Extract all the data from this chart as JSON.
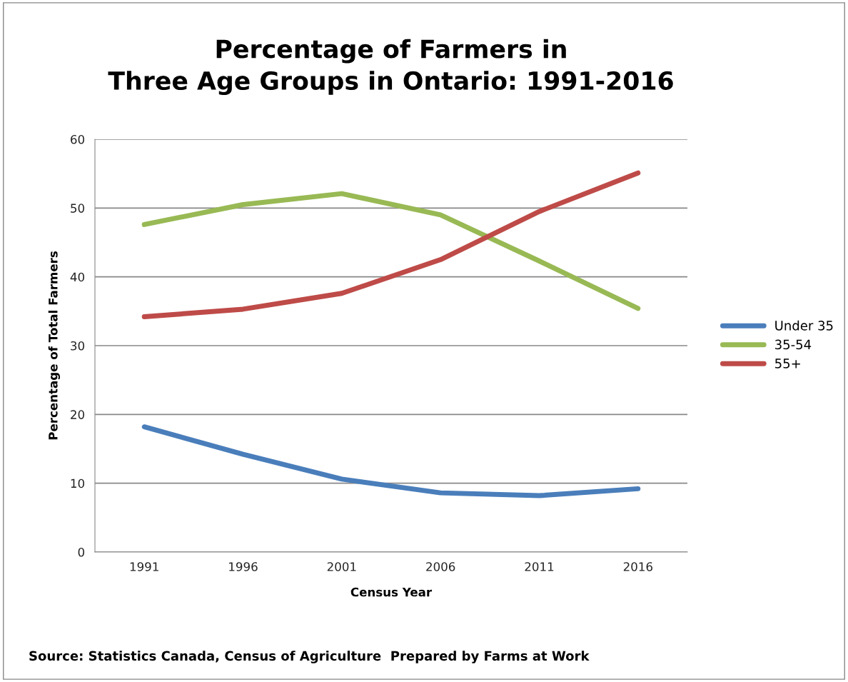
{
  "chart_data": {
    "type": "line",
    "title": "Percentage of Farmers in\nThree Age Groups in Ontario: 1991-2016",
    "xlabel": "Census Year",
    "ylabel": "Percentage of Total Farmers",
    "categories": [
      "1991",
      "1996",
      "2001",
      "2006",
      "2011",
      "2016"
    ],
    "series": [
      {
        "name": "Under 35",
        "color": "#4a7ebb",
        "values": [
          18.2,
          14.2,
          10.6,
          8.6,
          8.2,
          9.2
        ]
      },
      {
        "name": "35-54",
        "color": "#98b954",
        "values": [
          47.6,
          50.5,
          52.1,
          49.0,
          42.3,
          35.4
        ]
      },
      {
        "name": "55+",
        "color": "#be4b48",
        "values": [
          34.2,
          35.3,
          37.6,
          42.5,
          49.5,
          55.1
        ]
      }
    ],
    "ylim": [
      0,
      60
    ],
    "yticks": [
      0,
      10,
      20,
      30,
      40,
      50,
      60
    ],
    "grid": "y",
    "legend": "right",
    "marker": "none",
    "line_style": "solid",
    "annotations": [
      "Source: Statistics Canada, Census of Agriculture  Prepared by Farms at Work"
    ]
  }
}
